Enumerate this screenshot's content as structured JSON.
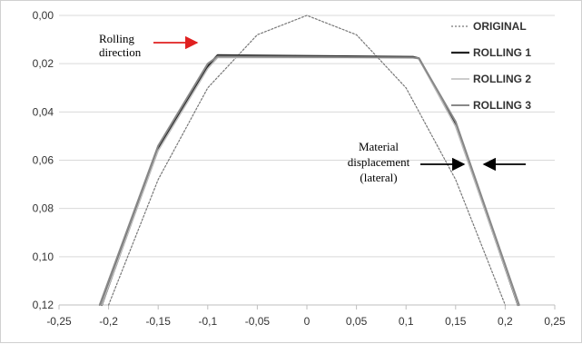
{
  "chart_data": {
    "type": "line",
    "title": "",
    "xlabel": "",
    "ylabel": "",
    "xlim": [
      -0.25,
      0.25
    ],
    "ylim": [
      0.0,
      0.12
    ],
    "y_inverted": true,
    "grid": "horizontal",
    "legend_placement": "right",
    "x_ticks": [
      "-0,25",
      "-0,2",
      "-0,15",
      "-0,1",
      "-0,05",
      "0",
      "0,05",
      "0,1",
      "0,15",
      "0,2",
      "0,25"
    ],
    "x_tick_values": [
      -0.25,
      -0.2,
      -0.15,
      -0.1,
      -0.05,
      0,
      0.05,
      0.1,
      0.15,
      0.2,
      0.25
    ],
    "y_ticks": [
      "0,00",
      "0,02",
      "0,04",
      "0,06",
      "0,08",
      "0,10",
      "0,12"
    ],
    "y_tick_values": [
      0.0,
      0.02,
      0.04,
      0.06,
      0.08,
      0.1,
      0.12
    ],
    "series": [
      {
        "name": "ORIGINAL",
        "color": "#777777",
        "dash": "2,2",
        "width": 1.2,
        "x": [
          -0.2,
          -0.15,
          -0.1,
          -0.05,
          0,
          0.05,
          0.1,
          0.15,
          0.2
        ],
        "y": [
          0.12,
          0.068,
          0.03,
          0.008,
          0.0,
          0.008,
          0.03,
          0.068,
          0.12
        ]
      },
      {
        "name": "ROLLING 1",
        "color": "#222222",
        "dash": "",
        "width": 2.2,
        "x": [
          -0.207,
          -0.15,
          -0.1,
          -0.09,
          0.0,
          0.107,
          0.113,
          0.15,
          0.213
        ],
        "y": [
          0.12,
          0.055,
          0.021,
          0.0165,
          0.0168,
          0.0172,
          0.0178,
          0.045,
          0.12
        ]
      },
      {
        "name": "ROLLING 2",
        "color": "#bbbbbb",
        "dash": "",
        "width": 1.6,
        "x": [
          -0.207,
          -0.15,
          -0.1,
          -0.09,
          0.0,
          0.107,
          0.113,
          0.15,
          0.213
        ],
        "y": [
          0.12,
          0.056,
          0.022,
          0.0175,
          0.0175,
          0.0175,
          0.018,
          0.046,
          0.12
        ]
      },
      {
        "name": "ROLLING 3",
        "color": "#888888",
        "dash": "",
        "width": 2.0,
        "x": [
          -0.209,
          -0.15,
          -0.1,
          -0.09,
          0.0,
          0.107,
          0.113,
          0.15,
          0.214
        ],
        "y": [
          0.12,
          0.054,
          0.02,
          0.017,
          0.0172,
          0.0175,
          0.0178,
          0.044,
          0.12
        ]
      }
    ],
    "annotations": {
      "rolling_direction": [
        "Rolling",
        "direction"
      ],
      "material_displacement": [
        "Material",
        "displacement",
        "(lateral)"
      ],
      "arrow_red_color": "#e02020",
      "arrow_black_color": "#000000"
    }
  }
}
